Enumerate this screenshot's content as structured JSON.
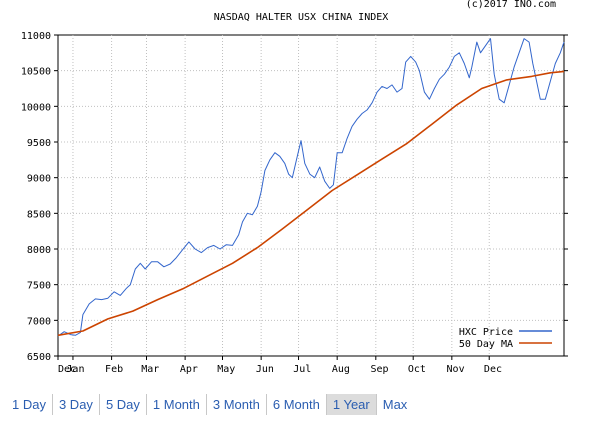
{
  "chart_data": {
    "type": "line",
    "title": "NASDAQ HALTER USX CHINA INDEX",
    "copyright": "(c)2017 INO.com",
    "ylim": [
      6500,
      11000
    ],
    "yticks": [
      6500,
      7000,
      7500,
      8000,
      8500,
      9000,
      9500,
      10000,
      10500,
      11000
    ],
    "xticks": [
      "Dec",
      "Jan",
      "Feb",
      "Mar",
      "Apr",
      "May",
      "Jun",
      "Jul",
      "Aug",
      "Sep",
      "Oct",
      "Nov",
      "Dec"
    ],
    "grid": true,
    "legend_position": "bottom-right",
    "series": [
      {
        "name": "HXC Price",
        "color": "#3366cc",
        "points": [
          [
            0,
            6780
          ],
          [
            5,
            6840
          ],
          [
            10,
            6800
          ],
          [
            14,
            6790
          ],
          [
            18,
            6830
          ],
          [
            20,
            7080
          ],
          [
            25,
            7230
          ],
          [
            30,
            7300
          ],
          [
            35,
            7290
          ],
          [
            40,
            7310
          ],
          [
            45,
            7400
          ],
          [
            50,
            7350
          ],
          [
            55,
            7450
          ],
          [
            58,
            7500
          ],
          [
            62,
            7720
          ],
          [
            66,
            7800
          ],
          [
            70,
            7720
          ],
          [
            75,
            7820
          ],
          [
            80,
            7820
          ],
          [
            85,
            7750
          ],
          [
            90,
            7790
          ],
          [
            95,
            7880
          ],
          [
            100,
            7990
          ],
          [
            105,
            8100
          ],
          [
            110,
            8000
          ],
          [
            115,
            7950
          ],
          [
            120,
            8020
          ],
          [
            125,
            8050
          ],
          [
            130,
            8000
          ],
          [
            135,
            8060
          ],
          [
            140,
            8050
          ],
          [
            145,
            8200
          ],
          [
            148,
            8380
          ],
          [
            152,
            8500
          ],
          [
            156,
            8480
          ],
          [
            160,
            8600
          ],
          [
            163,
            8800
          ],
          [
            166,
            9100
          ],
          [
            170,
            9250
          ],
          [
            174,
            9350
          ],
          [
            178,
            9300
          ],
          [
            182,
            9200
          ],
          [
            185,
            9050
          ],
          [
            188,
            9000
          ],
          [
            192,
            9300
          ],
          [
            195,
            9520
          ],
          [
            198,
            9200
          ],
          [
            202,
            9050
          ],
          [
            206,
            9000
          ],
          [
            210,
            9150
          ],
          [
            214,
            8950
          ],
          [
            218,
            8850
          ],
          [
            221,
            8900
          ],
          [
            224,
            9350
          ],
          [
            228,
            9350
          ],
          [
            232,
            9550
          ],
          [
            236,
            9720
          ],
          [
            240,
            9820
          ],
          [
            244,
            9900
          ],
          [
            248,
            9950
          ],
          [
            252,
            10050
          ],
          [
            256,
            10200
          ],
          [
            260,
            10280
          ],
          [
            264,
            10250
          ],
          [
            268,
            10300
          ],
          [
            272,
            10200
          ],
          [
            276,
            10250
          ],
          [
            279,
            10620
          ],
          [
            283,
            10700
          ],
          [
            287,
            10620
          ],
          [
            290,
            10500
          ],
          [
            294,
            10200
          ],
          [
            298,
            10100
          ],
          [
            302,
            10250
          ],
          [
            306,
            10380
          ],
          [
            310,
            10450
          ],
          [
            314,
            10550
          ],
          [
            318,
            10700
          ],
          [
            322,
            10750
          ],
          [
            326,
            10600
          ],
          [
            330,
            10400
          ],
          [
            332,
            10550
          ],
          [
            336,
            10900
          ],
          [
            339,
            10750
          ],
          [
            343,
            10850
          ],
          [
            347,
            10950
          ],
          [
            350,
            10450
          ],
          [
            354,
            10100
          ],
          [
            358,
            10050
          ],
          [
            362,
            10300
          ],
          [
            366,
            10550
          ],
          [
            370,
            10750
          ],
          [
            374,
            10950
          ],
          [
            378,
            10900
          ],
          [
            381,
            10600
          ],
          [
            384,
            10350
          ],
          [
            387,
            10100
          ],
          [
            391,
            10100
          ],
          [
            395,
            10350
          ],
          [
            399,
            10600
          ],
          [
            403,
            10750
          ],
          [
            406,
            10900
          ]
        ]
      },
      {
        "name": "50 Day MA",
        "color": "#cc4400",
        "points": [
          [
            0,
            6790
          ],
          [
            20,
            6850
          ],
          [
            40,
            7020
          ],
          [
            60,
            7130
          ],
          [
            80,
            7290
          ],
          [
            100,
            7440
          ],
          [
            120,
            7620
          ],
          [
            140,
            7800
          ],
          [
            160,
            8020
          ],
          [
            180,
            8280
          ],
          [
            200,
            8550
          ],
          [
            220,
            8820
          ],
          [
            240,
            9040
          ],
          [
            260,
            9260
          ],
          [
            280,
            9480
          ],
          [
            300,
            9750
          ],
          [
            320,
            10020
          ],
          [
            340,
            10250
          ],
          [
            360,
            10370
          ],
          [
            380,
            10420
          ],
          [
            395,
            10470
          ],
          [
            406,
            10490
          ]
        ]
      }
    ]
  },
  "range_selector": {
    "options": [
      "1 Day",
      "3 Day",
      "5 Day",
      "1 Month",
      "3 Month",
      "6 Month",
      "1 Year",
      "Max"
    ],
    "active": "1 Year"
  }
}
